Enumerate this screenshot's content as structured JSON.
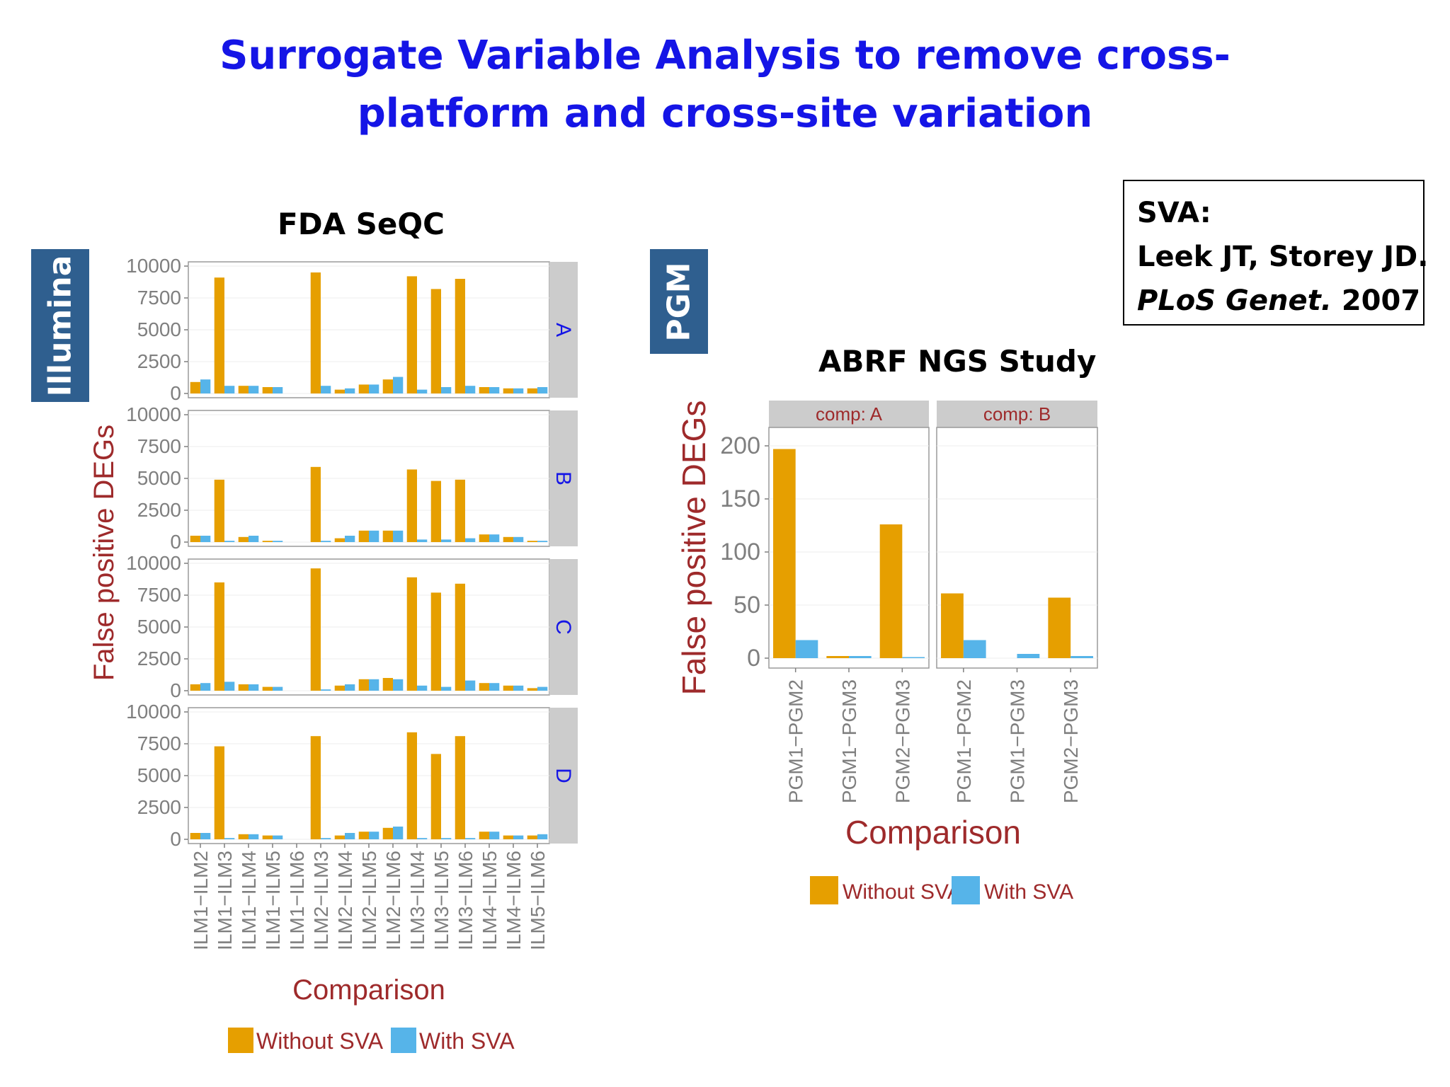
{
  "slide": {
    "title_line1": "Surrogate Variable Analysis to remove cross-",
    "title_line2": "platform and cross-site variation",
    "tag_left": "Illumina",
    "tag_right": "PGM",
    "left_chart_title": "FDA SeQC",
    "right_chart_title": "ABRF NGS Study",
    "reference": {
      "line1": "SVA:",
      "line2": "Leek JT, Storey JD.",
      "line3_italic": "PLoS Genet.",
      "line3_rest": " 2007"
    }
  },
  "colors": {
    "without_sva": "#E69F00",
    "with_sva": "#56B4E9",
    "axis_title": "#9E2A2B",
    "strip_bg": "#cccccc",
    "facet_label_blue": "#1515e6"
  },
  "chart_data": [
    {
      "type": "bar",
      "name": "FDA SeQC",
      "xlabel": "Comparison",
      "ylabel": "False positive DEGs",
      "ylim": [
        0,
        10000
      ],
      "yticks": [
        0,
        2500,
        5000,
        7500,
        10000
      ],
      "categories": [
        "ILM1−ILM2",
        "ILM1−ILM3",
        "ILM1−ILM4",
        "ILM1−ILM5",
        "ILM1−ILM6",
        "ILM2−ILM3",
        "ILM2−ILM4",
        "ILM2−ILM5",
        "ILM2−ILM6",
        "ILM3−ILM4",
        "ILM3−ILM5",
        "ILM3−ILM6",
        "ILM4−ILM5",
        "ILM4−ILM6",
        "ILM5−ILM6"
      ],
      "legend": [
        "Without SVA",
        "With SVA"
      ],
      "legend_position": "bottom",
      "facets": [
        {
          "label": "A",
          "without": [
            900,
            9100,
            600,
            500,
            0,
            9500,
            300,
            700,
            1100,
            9200,
            8200,
            9000,
            500,
            400,
            400
          ],
          "with": [
            1100,
            600,
            600,
            500,
            0,
            600,
            400,
            700,
            1300,
            300,
            500,
            600,
            500,
            400,
            500
          ]
        },
        {
          "label": "B",
          "without": [
            500,
            4900,
            400,
            100,
            0,
            5900,
            300,
            900,
            900,
            5700,
            4800,
            4900,
            600,
            400,
            100
          ],
          "with": [
            500,
            100,
            500,
            100,
            0,
            100,
            500,
            900,
            900,
            200,
            200,
            300,
            600,
            400,
            100
          ]
        },
        {
          "label": "C",
          "without": [
            500,
            8500,
            500,
            300,
            0,
            9600,
            400,
            900,
            1000,
            8900,
            7700,
            8400,
            600,
            400,
            200
          ],
          "with": [
            600,
            700,
            500,
            300,
            0,
            100,
            500,
            900,
            900,
            400,
            300,
            800,
            600,
            400,
            300
          ]
        },
        {
          "label": "D",
          "without": [
            500,
            7300,
            400,
            300,
            0,
            8100,
            300,
            600,
            900,
            8400,
            6700,
            8100,
            600,
            300,
            300
          ],
          "with": [
            500,
            100,
            400,
            300,
            0,
            100,
            500,
            600,
            1000,
            100,
            100,
            100,
            600,
            300,
            400
          ]
        }
      ]
    },
    {
      "type": "bar",
      "name": "ABRF NGS Study",
      "xlabel": "Comparison",
      "ylabel": "False positive DEGs",
      "ylim": [
        0,
        200
      ],
      "yticks": [
        0,
        50,
        100,
        150,
        200
      ],
      "categories": [
        "PGM1−PGM2",
        "PGM1−PGM3",
        "PGM2−PGM3"
      ],
      "legend": [
        "Without SVA",
        "With SVA"
      ],
      "legend_position": "bottom",
      "facets": [
        {
          "label": "comp: A",
          "without": [
            197,
            2,
            126
          ],
          "with": [
            17,
            2,
            1
          ]
        },
        {
          "label": "comp: B",
          "without": [
            61,
            0,
            57
          ],
          "with": [
            17,
            4,
            2
          ]
        }
      ]
    }
  ]
}
